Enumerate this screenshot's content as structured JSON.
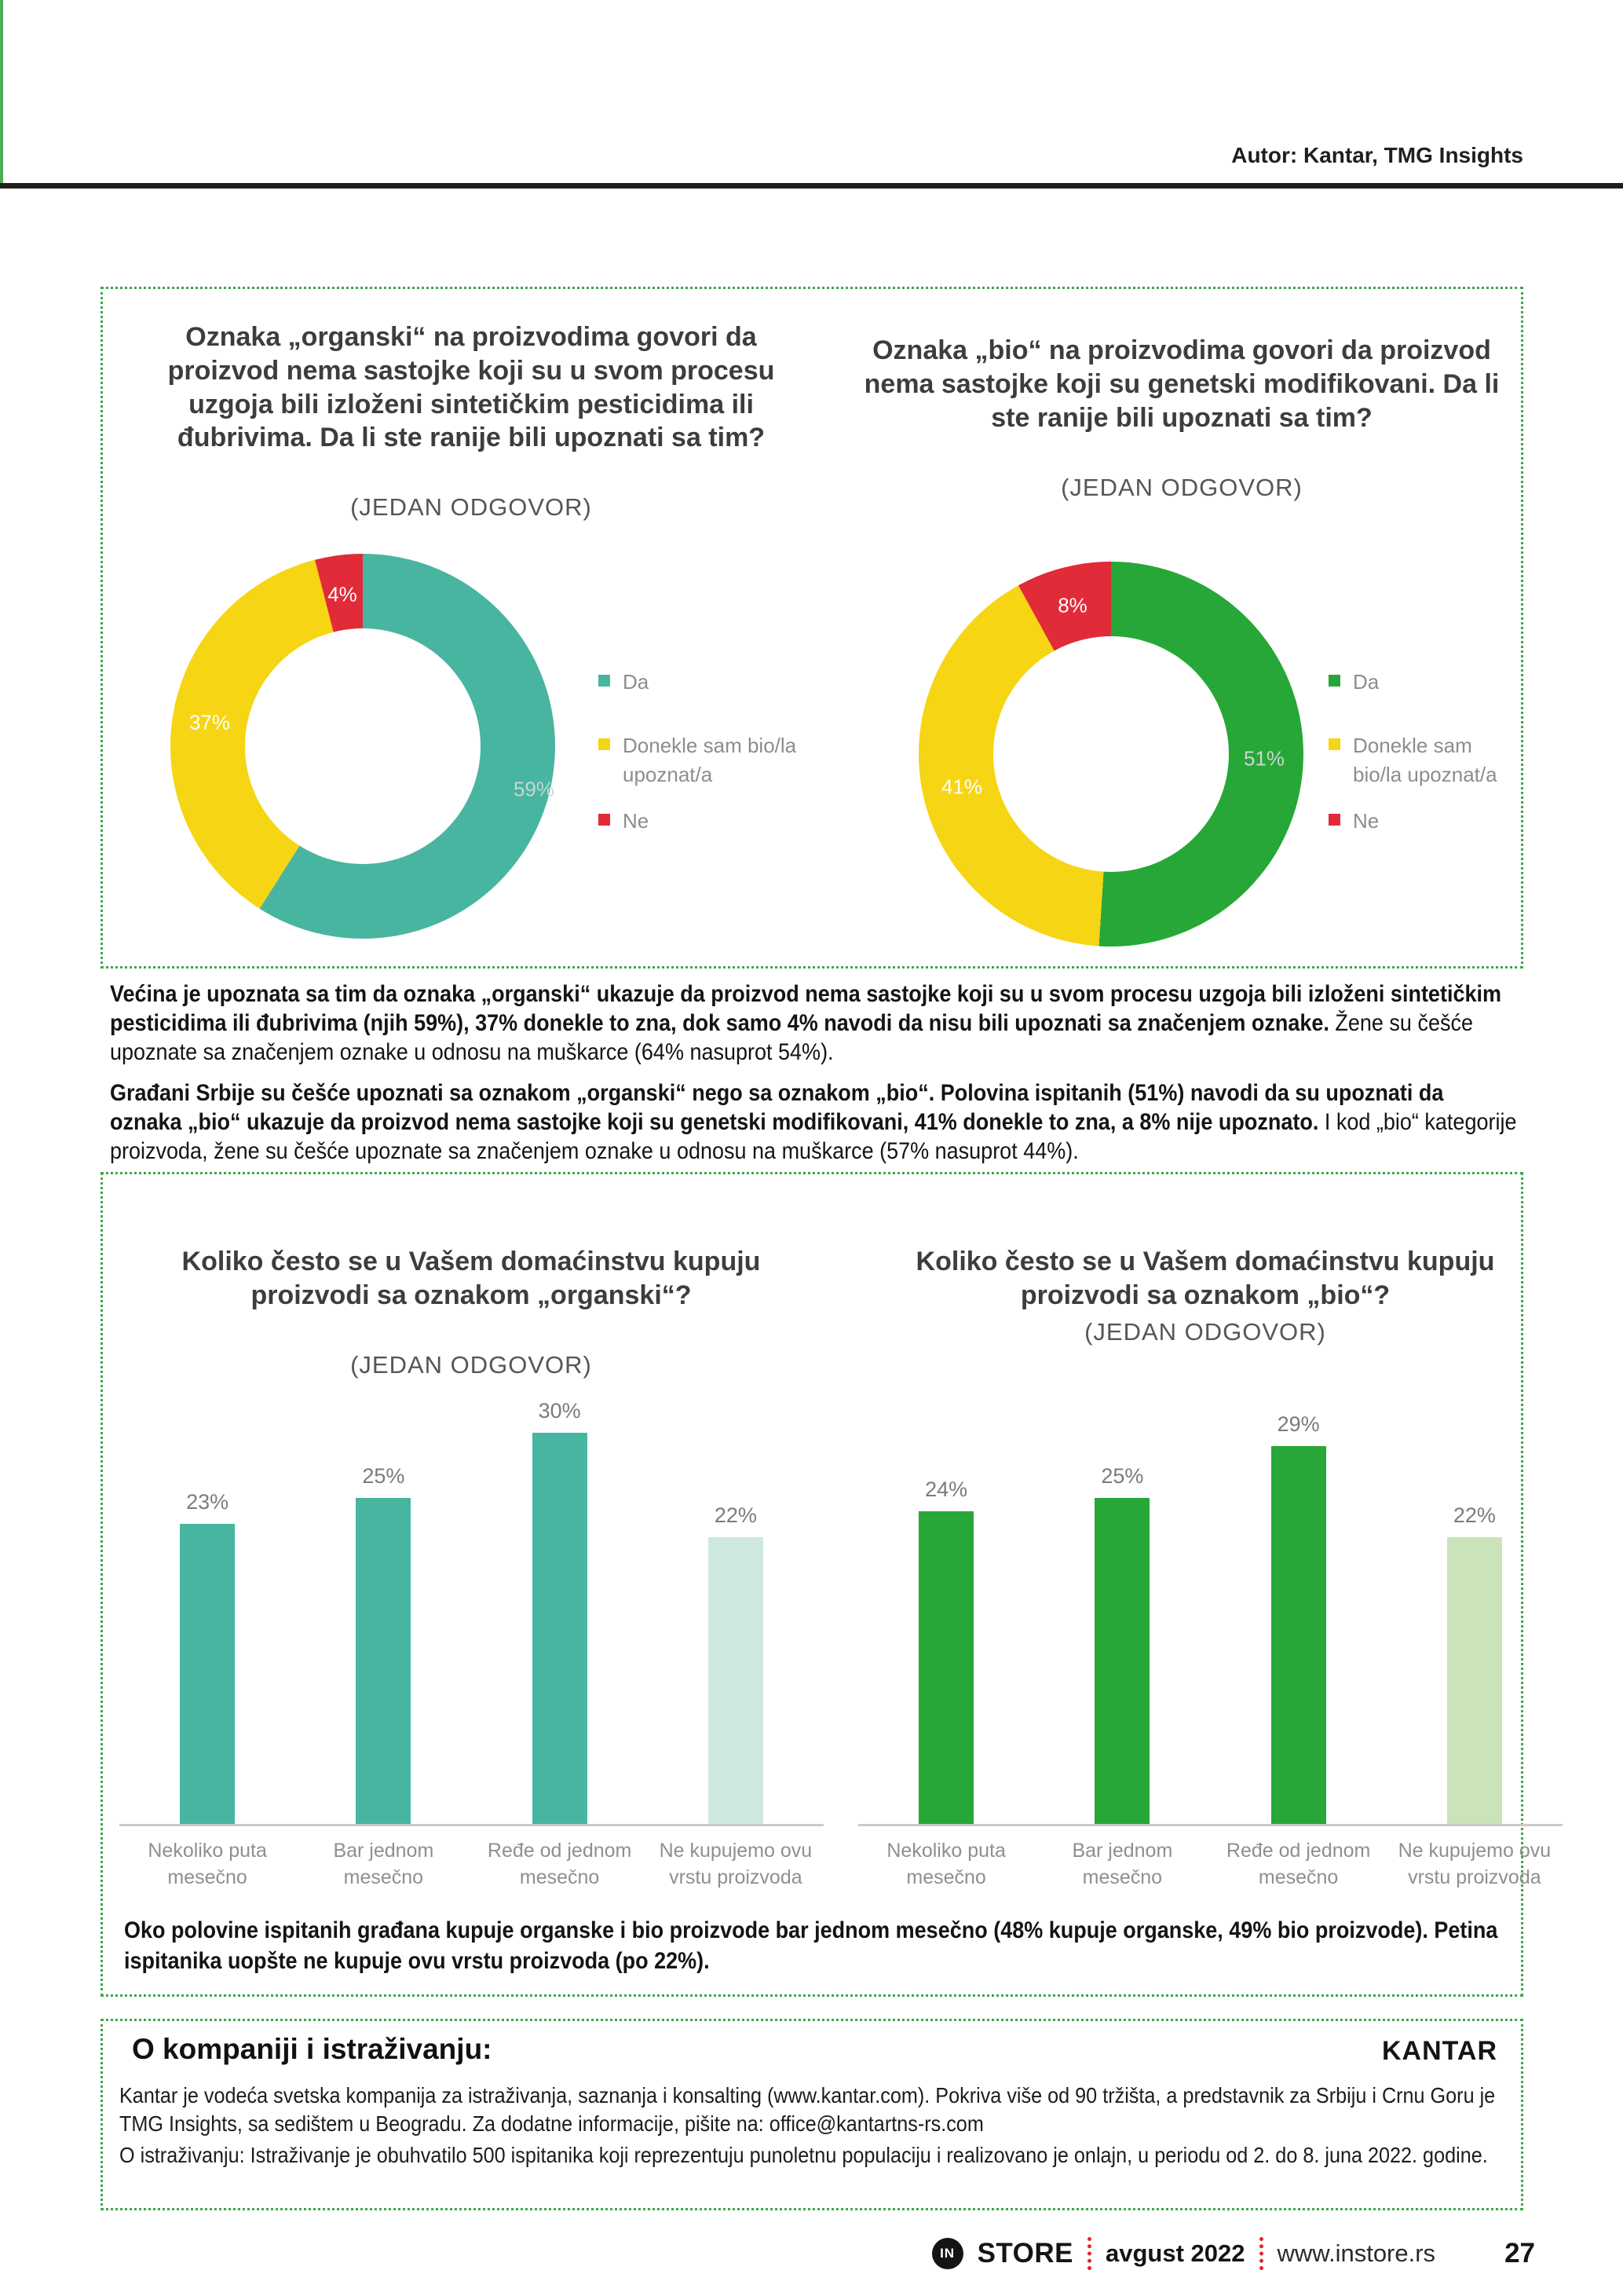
{
  "header": {
    "author": "Autor: Kantar, TMG Insights"
  },
  "awareness_section": {
    "left": {
      "title": "Oznaka „organski“ na proizvodima govori da proizvod nema sastojke koji su u svom procesu uzgoja bili izloženi sintetičkim pesticidima ili đubrivima. Da li ste ranije bili upoznati sa tim?",
      "subtitle": "(JEDAN ODGOVOR)",
      "slices": [
        {
          "label": "Da",
          "value": 59,
          "display": "59%",
          "color": "#48b5a0"
        },
        {
          "label": "Donekle sam bio/la upoznat/a",
          "value": 37,
          "display": "37%",
          "color": "#f6d515"
        },
        {
          "label": "Ne",
          "value": 4,
          "display": "4%",
          "color": "#e12b38"
        }
      ],
      "legend": [
        {
          "label": "Da",
          "color": "#48b5a0"
        },
        {
          "label": "Donekle sam bio/la\nupoznat/a",
          "color": "#f6d515"
        },
        {
          "label": "Ne",
          "color": "#e12b38"
        }
      ]
    },
    "right": {
      "title": "Oznaka „bio“ na proizvodima govori da proizvod nema sastojke koji su genetski modifikovani. Da li ste ranije bili upoznati sa tim?",
      "subtitle": "(JEDAN ODGOVOR)",
      "slices": [
        {
          "label": "Da",
          "value": 51,
          "display": "51%",
          "color": "#27a737"
        },
        {
          "label": "Donekle sam bio/la upoznat/a",
          "value": 41,
          "display": "41%",
          "color": "#f6d515"
        },
        {
          "label": "Ne",
          "value": 8,
          "display": "8%",
          "color": "#e12b38"
        }
      ],
      "legend": [
        {
          "label": "Da",
          "color": "#27a737"
        },
        {
          "label": "Donekle sam\nbio/la upoznat/a",
          "color": "#f6d515"
        },
        {
          "label": "Ne",
          "color": "#e12b38"
        }
      ]
    }
  },
  "findings": {
    "p1_bold": "Većina je upoznata sa tim da oznaka „organski“ ukazuje da proizvod nema sastojke koji su u svom procesu uzgoja bili izloženi sintetičkim pesticidima ili đubrivima (njih 59%), 37% donekle to zna, dok samo 4% navodi da nisu bili upoznati sa značenjem oznake.",
    "p1_normal": " Žene su češće upoznate sa značenjem oznake u odnosu na muškarce (64% nasuprot 54%).",
    "p2_bold": "Građani Srbije su češće upoznati sa oznakom „organski“ nego sa oznakom „bio“. Polovina ispitanih (51%) navodi da su upoznati da oznaka „bio“ ukazuje da proizvod nema sastojke koji su genetski modifikovani, 41% donekle to zna, a 8% nije upoznato.",
    "p2_normal": " I kod „bio“ kategorije proizvoda, žene su češće upoznate sa značenjem oznake u odnosu na muškarce (57% nasuprot 44%)."
  },
  "frequency_section": {
    "left": {
      "title": "Koliko često se u Vašem domaćinstvu kupuju proizvodi sa oznakom „organski“?",
      "subtitle": "(JEDAN ODGOVOR)",
      "bars": [
        {
          "label": "Nekoliko puta\nmesečno",
          "value": 23,
          "display": "23%",
          "color": "#48b5a0"
        },
        {
          "label": "Bar jednom\nmesečno",
          "value": 25,
          "display": "25%",
          "color": "#48b5a0"
        },
        {
          "label": "Ređe od jednom\nmesečno",
          "value": 30,
          "display": "30%",
          "color": "#48b5a0"
        },
        {
          "label": "Ne kupujemo ovu\nvrstu proizvoda",
          "value": 22,
          "display": "22%",
          "color": "#cfe9e2"
        }
      ]
    },
    "right": {
      "title": "Koliko često se u Vašem domaćinstvu kupuju proizvodi sa oznakom „bio“?",
      "subtitle": "(JEDAN ODGOVOR)",
      "bars": [
        {
          "label": "Nekoliko puta\nmesečno",
          "value": 24,
          "display": "24%",
          "color": "#27a737"
        },
        {
          "label": "Bar jednom\nmesečno",
          "value": 25,
          "display": "25%",
          "color": "#27a737"
        },
        {
          "label": "Ređe od jednom\nmesečno",
          "value": 29,
          "display": "29%",
          "color": "#27a737"
        },
        {
          "label": "Ne kupujemo ovu\nvrstu proizvoda",
          "value": 22,
          "display": "22%",
          "color": "#cbe3ba"
        }
      ]
    },
    "summary": "Oko polovine ispitanih građana kupuje organske i bio proizvode bar jednom mesečno (48% kupuje organske, 49% bio proizvode). Petina ispitanika uopšte ne kupuje ovu vrstu proizvoda (po 22%)."
  },
  "about": {
    "heading": "O kompaniji i istraživanju:",
    "logo": "KANTAR",
    "p1": "Kantar je vodeća svetska kompanija za istraživanja, saznanja i konsalting (www.kantar.com). Pokriva više od 90 tržišta, a predstavnik za Srbiju i Crnu Goru je TMG Insights, sa sedištem u Beogradu. Za dodatne informacije, pišite na: office@kantartns-rs.com",
    "p2": "O istraživanju: Istraživanje je obuhvatilo 500 ispitanika koji reprezentuju punoletnu populaciju i realizovano je onlajn, u periodu od 2. do 8. juna 2022. godine."
  },
  "footer": {
    "logo_in": "IN",
    "brand": "STORE",
    "issue": "avgust 2022",
    "site": "www.instore.rs",
    "page_number": "27"
  },
  "chart_data": [
    {
      "type": "pie",
      "donut": true,
      "title": "Oznaka „organski“ na proizvodima govori da proizvod nema sastojke koji su u svom procesu uzgoja bili izloženi sintetičkim pesticidima ili đubrivima. Da li ste ranije bili upoznati sa tim? (JEDAN ODGOVOR)",
      "categories": [
        "Da",
        "Donekle sam bio/la upoznat/a",
        "Ne"
      ],
      "values": [
        59,
        37,
        4
      ],
      "colors": [
        "#48b5a0",
        "#f6d515",
        "#e12b38"
      ],
      "legend_position": "right"
    },
    {
      "type": "pie",
      "donut": true,
      "title": "Oznaka „bio“ na proizvodima govori da proizvod nema sastojke koji su genetski modifikovani. Da li ste ranije bili upoznati sa tim? (JEDAN ODGOVOR)",
      "categories": [
        "Da",
        "Donekle sam bio/la upoznat/a",
        "Ne"
      ],
      "values": [
        51,
        41,
        8
      ],
      "colors": [
        "#27a737",
        "#f6d515",
        "#e12b38"
      ],
      "legend_position": "right"
    },
    {
      "type": "bar",
      "title": "Koliko često se u Vašem domaćinstvu kupuju proizvodi sa oznakom „organski“? (JEDAN ODGOVOR)",
      "categories": [
        "Nekoliko puta mesečno",
        "Bar jednom mesečno",
        "Ređe od jednom mesečno",
        "Ne kupujemo ovu vrstu proizvoda"
      ],
      "values": [
        23,
        25,
        30,
        22
      ],
      "xlabel": "",
      "ylabel": "",
      "ylim": [
        0,
        32
      ],
      "grid": false,
      "data_labels": [
        "23%",
        "25%",
        "30%",
        "22%"
      ]
    },
    {
      "type": "bar",
      "title": "Koliko često se u Vašem domaćinstvu kupuju proizvodi sa oznakom „bio“? (JEDAN ODGOVOR)",
      "categories": [
        "Nekoliko puta mesečno",
        "Bar jednom mesečno",
        "Ređe od jednom mesečno",
        "Ne kupujemo ovu vrstu proizvoda"
      ],
      "values": [
        24,
        25,
        29,
        22
      ],
      "xlabel": "",
      "ylabel": "",
      "ylim": [
        0,
        32
      ],
      "grid": false,
      "data_labels": [
        "24%",
        "25%",
        "29%",
        "22%"
      ]
    }
  ]
}
